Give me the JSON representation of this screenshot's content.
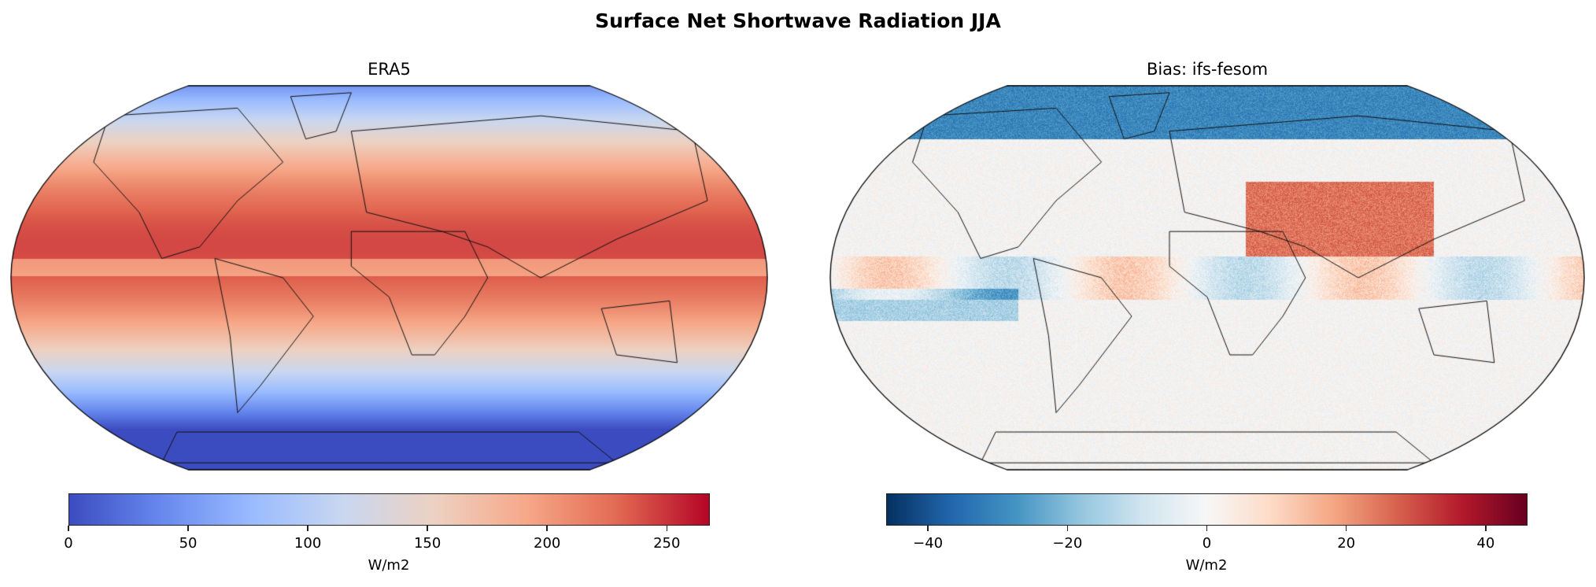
{
  "title": "Surface Net Shortwave Radiation JJA",
  "chart_data": [
    {
      "type": "heatmap",
      "subtitle": "ERA5",
      "projection": "Robinson",
      "colormap": "coolwarm",
      "colorbar": {
        "label": "W/m2",
        "range": [
          0,
          268
        ],
        "ticks": [
          0,
          50,
          100,
          150,
          200,
          250
        ],
        "tick_labels": [
          "0",
          "50",
          "100",
          "150",
          "200",
          "250"
        ],
        "orientation": "horizontal",
        "placement": "bottom"
      },
      "coastlines": true
    },
    {
      "type": "heatmap",
      "subtitle": "Bias: ifs-fesom",
      "projection": "Robinson",
      "colormap": "RdBu_r",
      "colorbar": {
        "label": "W/m2",
        "range": [
          -46,
          46
        ],
        "ticks": [
          -40,
          -20,
          0,
          20,
          40
        ],
        "tick_labels": [
          "−40",
          "−20",
          "0",
          "20",
          "40"
        ],
        "orientation": "horizontal",
        "placement": "bottom"
      },
      "coastlines": true
    }
  ]
}
